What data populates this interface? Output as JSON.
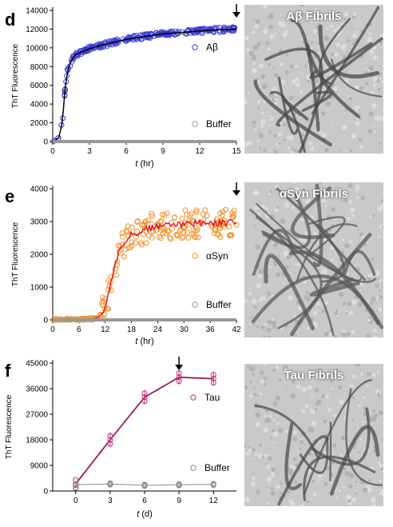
{
  "panels": [
    {
      "letter": "d",
      "chart_data": {
        "type": "scatter",
        "xlabel_italic": "t",
        "xlabel_unit": "(hr)",
        "ylabel": "ThT Fluorescence",
        "xlim": [
          0,
          15
        ],
        "ylim": [
          0,
          14000
        ],
        "xticks": [
          0,
          3,
          6,
          9,
          12,
          15
        ],
        "yticks": [
          0,
          2000,
          4000,
          6000,
          8000,
          10000,
          12000,
          14000
        ],
        "arrow_x": 15,
        "series": [
          {
            "name": "Aβ",
            "color": "#3b3bd6",
            "fit_color": "#000000",
            "x": [
              0,
              0.5,
              0.8,
              1.0,
              1.2,
              1.5,
              1.8,
              2.2,
              2.6,
              3,
              4,
              5,
              6,
              7,
              8,
              9,
              10,
              11,
              12,
              13,
              14,
              15
            ],
            "values": [
              0,
              400,
              2200,
              5500,
              7500,
              8600,
              9200,
              9500,
              9700,
              9900,
              10300,
              10600,
              10900,
              11100,
              11300,
              11500,
              11600,
              11700,
              11800,
              11900,
              11950,
              12000
            ]
          },
          {
            "name": "Buffer",
            "color": "#999999",
            "x": [
              0,
              15
            ],
            "values": [
              0,
              0
            ]
          }
        ]
      },
      "image_label": "Aβ Fibrils"
    },
    {
      "letter": "e",
      "chart_data": {
        "type": "scatter",
        "xlabel_italic": "t",
        "xlabel_unit": "(hr)",
        "ylabel": "ThT Fluorescence",
        "xlim": [
          0,
          42
        ],
        "ylim": [
          0,
          4000
        ],
        "xticks": [
          0,
          6,
          12,
          18,
          24,
          30,
          36,
          42
        ],
        "yticks": [
          0,
          1000,
          2000,
          3000,
          4000
        ],
        "arrow_x": 42,
        "series": [
          {
            "name": "αSyn",
            "color": "#f0932b",
            "fit_color": "#e8141b",
            "x": [
              0,
              6,
              9,
              10,
              11,
              12,
              13,
              14,
              15,
              16,
              17,
              18,
              20,
              22,
              24,
              27,
              30,
              33,
              36,
              39,
              42
            ],
            "values": [
              0,
              0,
              20,
              60,
              150,
              400,
              900,
              1500,
              2000,
              2300,
              2500,
              2600,
              2700,
              2800,
              2850,
              2900,
              2900,
              2950,
              2950,
              2950,
              3000
            ]
          },
          {
            "name": "Buffer",
            "color": "#999999",
            "x": [
              0,
              42
            ],
            "values": [
              0,
              0
            ]
          }
        ]
      },
      "image_label": "αSyn Fibrils"
    },
    {
      "letter": "f",
      "chart_data": {
        "type": "scatter",
        "xlabel_italic": "t",
        "xlabel_unit": "(d)",
        "ylabel": "ThT Fluorescence",
        "xlim": [
          -2,
          14
        ],
        "ylim": [
          0,
          45000
        ],
        "xticks": [
          0,
          3,
          6,
          9,
          12
        ],
        "yticks": [
          0,
          9000,
          18000,
          27000,
          36000,
          45000
        ],
        "arrow_x": 9,
        "series": [
          {
            "name": "Tau",
            "color": "#c0307a",
            "fit_color": "#9b1b5a",
            "x": [
              0,
              3,
              6,
              9,
              12
            ],
            "values": [
              2500,
              18000,
              33000,
              40000,
              39500
            ]
          },
          {
            "name": "Buffer",
            "color": "#8a8a8a",
            "x": [
              0,
              3,
              6,
              9,
              12
            ],
            "values": [
              2200,
              2500,
              2000,
              2200,
              2300
            ]
          }
        ]
      },
      "image_label": "Tau Fibrils"
    }
  ]
}
